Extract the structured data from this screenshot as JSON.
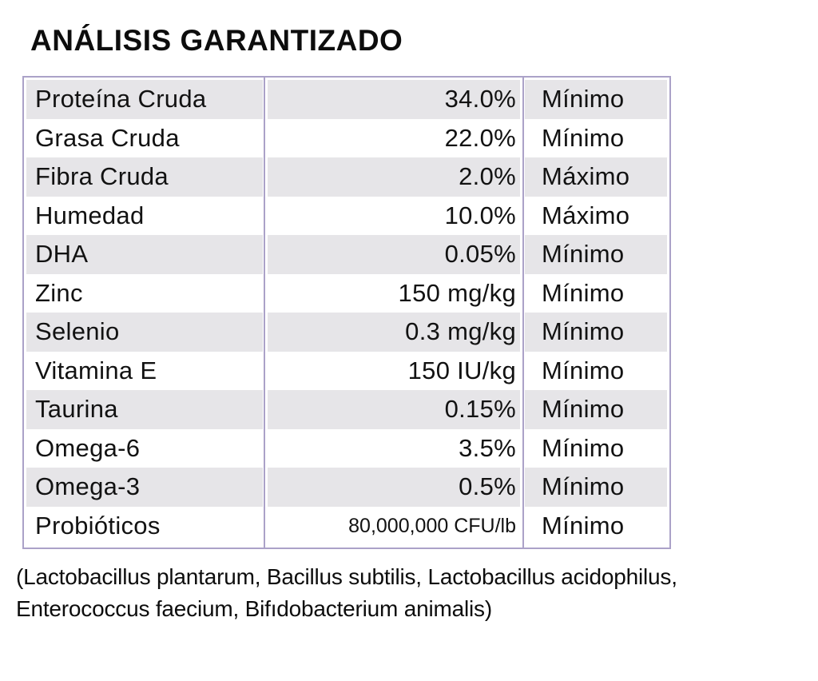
{
  "colors": {
    "table_border": "#aba2c8",
    "row_stripe": "#e6e5e8",
    "text": "#121212"
  },
  "title": "ANÁLISIS GARANTIZADO",
  "table": {
    "rows": [
      {
        "label": "Proteína Cruda",
        "value": "34.0%",
        "qualifier": "Mínimo"
      },
      {
        "label": "Grasa Cruda",
        "value": "22.0%",
        "qualifier": "Mínimo"
      },
      {
        "label": "Fibra Cruda",
        "value": "2.0%",
        "qualifier": "Máximo"
      },
      {
        "label": "Humedad",
        "value": "10.0%",
        "qualifier": "Máximo"
      },
      {
        "label": "DHA",
        "value": "0.05%",
        "qualifier": "Mínimo"
      },
      {
        "label": "Zinc",
        "value": "150 mg/kg",
        "qualifier": "Mínimo"
      },
      {
        "label": "Selenio",
        "value": "0.3 mg/kg",
        "qualifier": "Mínimo"
      },
      {
        "label": "Vitamina E",
        "value": "150 IU/kg",
        "qualifier": "Mínimo"
      },
      {
        "label": "Taurina",
        "value": "0.15%",
        "qualifier": "Mínimo"
      },
      {
        "label": "Omega-6",
        "value": "3.5%",
        "qualifier": "Mínimo"
      },
      {
        "label": "Omega-3",
        "value": "0.5%",
        "qualifier": "Mínimo"
      },
      {
        "label": "Probióticos",
        "value": "80,000,000 CFU/lb",
        "qualifier": "Mínimo"
      }
    ]
  },
  "footer": {
    "lines": [
      "(Lactobacillus plantarum, Bacillus subtilis, Lactobacillus acidophilus,",
      "Enterococcus faecium, Bifıdobacterium animalis)"
    ]
  }
}
